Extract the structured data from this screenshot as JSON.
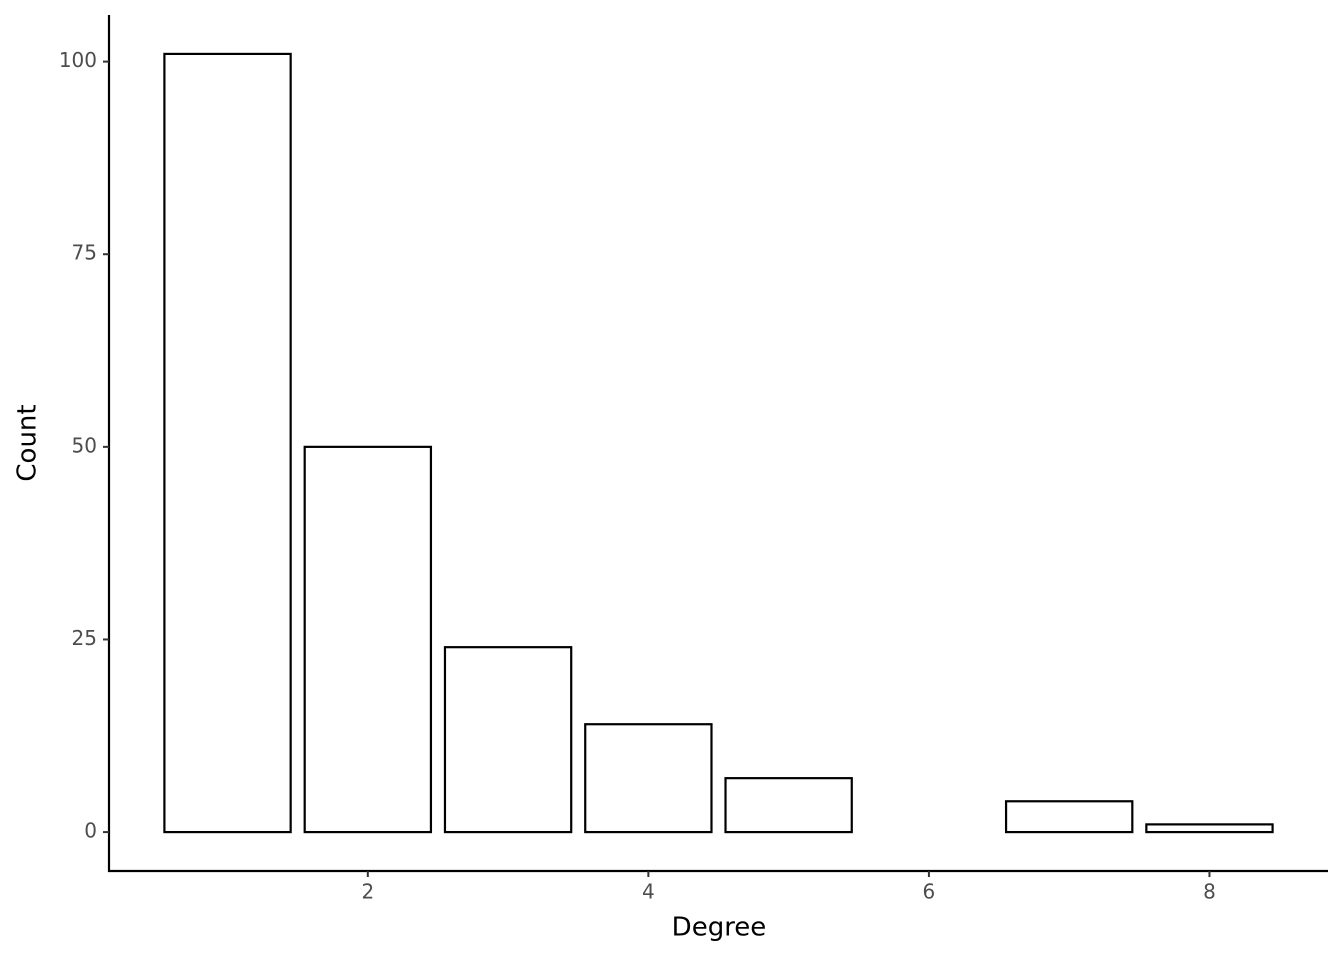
{
  "chart_data": {
    "type": "bar",
    "x_label": "Degree",
    "y_label": "Count",
    "x": [
      1,
      2,
      3,
      4,
      5,
      7,
      8
    ],
    "values": [
      101,
      50,
      24,
      14,
      7,
      4,
      1
    ],
    "color": "#ffffff",
    "edge_color": "#000000",
    "xlim": [
      0.155,
      8.845
    ],
    "xticks": [
      2,
      4,
      6,
      8
    ],
    "ylim": [
      -5.05,
      106.05
    ],
    "yticks": [
      0,
      25,
      50,
      75,
      100
    ],
    "grid": false
  }
}
